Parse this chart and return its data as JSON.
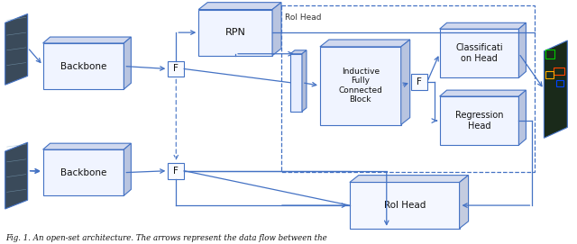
{
  "fig_width": 6.4,
  "fig_height": 2.71,
  "dpi": 100,
  "bg_color": "#ffffff",
  "box_edge": "#4472C4",
  "arrow_color": "#4472C4",
  "caption": "Fig. 1. An open-set architecture. The arrows represent the data flow between the",
  "backbone1_label": "Backbone",
  "backbone2_label": "Backbone",
  "rpn_label": "RPN",
  "f1_label": "F",
  "f2_label": "F",
  "f3_label": "F",
  "ifc_label": "Inductive\nFully\nConnected\nBlock",
  "cls_label": "Classificati\non Head",
  "reg_label": "Regression\nHead",
  "roi_bottom_label": "RoI Head",
  "roi_dashed_label": "RoI Head",
  "face_color_main": "#f0f4ff",
  "face_color_top": "#d0d8ee",
  "face_color_side": "#b8c4e0",
  "face_color_flat": "#e8ecf8"
}
